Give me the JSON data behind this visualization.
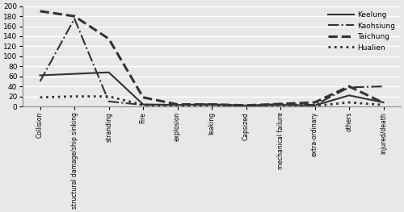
{
  "categories": [
    "Collision",
    "structural damage/ship sinking",
    "stranding",
    "Fire",
    "explosion",
    "leaking",
    "Capsized",
    "mechanical failure",
    "extra-ordinary",
    "others",
    "injured/death"
  ],
  "series": {
    "Keelung": [
      62,
      65,
      68,
      4,
      3,
      4,
      2,
      3,
      2,
      22,
      8
    ],
    "Kaohsiung": [
      50,
      175,
      10,
      3,
      3,
      4,
      1,
      5,
      3,
      38,
      40
    ],
    "Taichung": [
      190,
      180,
      135,
      18,
      4,
      4,
      2,
      5,
      8,
      40,
      7
    ],
    "Hualien": [
      18,
      20,
      20,
      3,
      1,
      2,
      1,
      2,
      1,
      8,
      3
    ]
  },
  "line_styles": {
    "Keelung": {
      "linestyle": "-",
      "linewidth": 1.5,
      "color": "#333333"
    },
    "Kaohsiung": {
      "linestyle": "-.",
      "linewidth": 1.5,
      "color": "#333333"
    },
    "Taichung": {
      "linestyle": "--",
      "linewidth": 2.2,
      "color": "#333333"
    },
    "Hualien": {
      "linestyle": ":",
      "linewidth": 2.0,
      "color": "#333333"
    }
  },
  "ylim": [
    0,
    200
  ],
  "yticks": [
    0,
    20,
    40,
    60,
    80,
    100,
    120,
    140,
    160,
    180,
    200
  ],
  "background_color": "#e8e8e8",
  "plot_bg_color": "#e8e8e8",
  "grid_color": "white",
  "figsize": [
    5.0,
    2.63
  ],
  "dpi": 100,
  "xtick_fontsize": 5.5,
  "ytick_fontsize": 6.5,
  "legend_fontsize": 6.5
}
